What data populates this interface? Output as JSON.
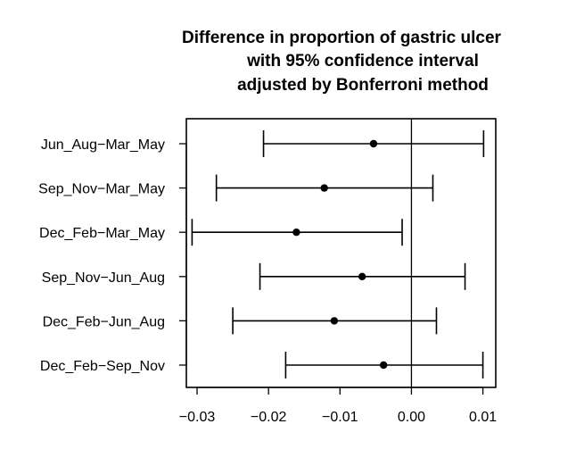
{
  "chart_data": {
    "type": "scatter",
    "title_lines": [
      "Difference in proportion of gastric ulcer",
      "with 95% confidence interval",
      "adjusted by Bonferroni method"
    ],
    "xlabel": "",
    "ylabel": "",
    "xlim": [
      -0.0315,
      0.0118
    ],
    "x_ticks": [
      -0.03,
      -0.02,
      -0.01,
      0.0,
      0.01
    ],
    "x_tick_labels": [
      "−0.03",
      "−0.02",
      "−0.01",
      "0.00",
      "0.01"
    ],
    "reference_line": 0.0,
    "grid": false,
    "comparisons": [
      {
        "label": "Jun_Aug−Mar_May",
        "estimate": -0.0053,
        "lower": -0.0207,
        "upper": 0.0101
      },
      {
        "label": "Sep_Nov−Mar_May",
        "estimate": -0.0122,
        "lower": -0.0273,
        "upper": 0.003
      },
      {
        "label": "Dec_Feb−Mar_May",
        "estimate": -0.0161,
        "lower": -0.0307,
        "upper": -0.0013
      },
      {
        "label": "Sep_Nov−Jun_Aug",
        "estimate": -0.0069,
        "lower": -0.0212,
        "upper": 0.0075
      },
      {
        "label": "Dec_Feb−Jun_Aug",
        "estimate": -0.0108,
        "lower": -0.025,
        "upper": 0.0035
      },
      {
        "label": "Dec_Feb−Sep_Nov",
        "estimate": -0.0039,
        "lower": -0.0176,
        "upper": 0.01
      }
    ]
  }
}
